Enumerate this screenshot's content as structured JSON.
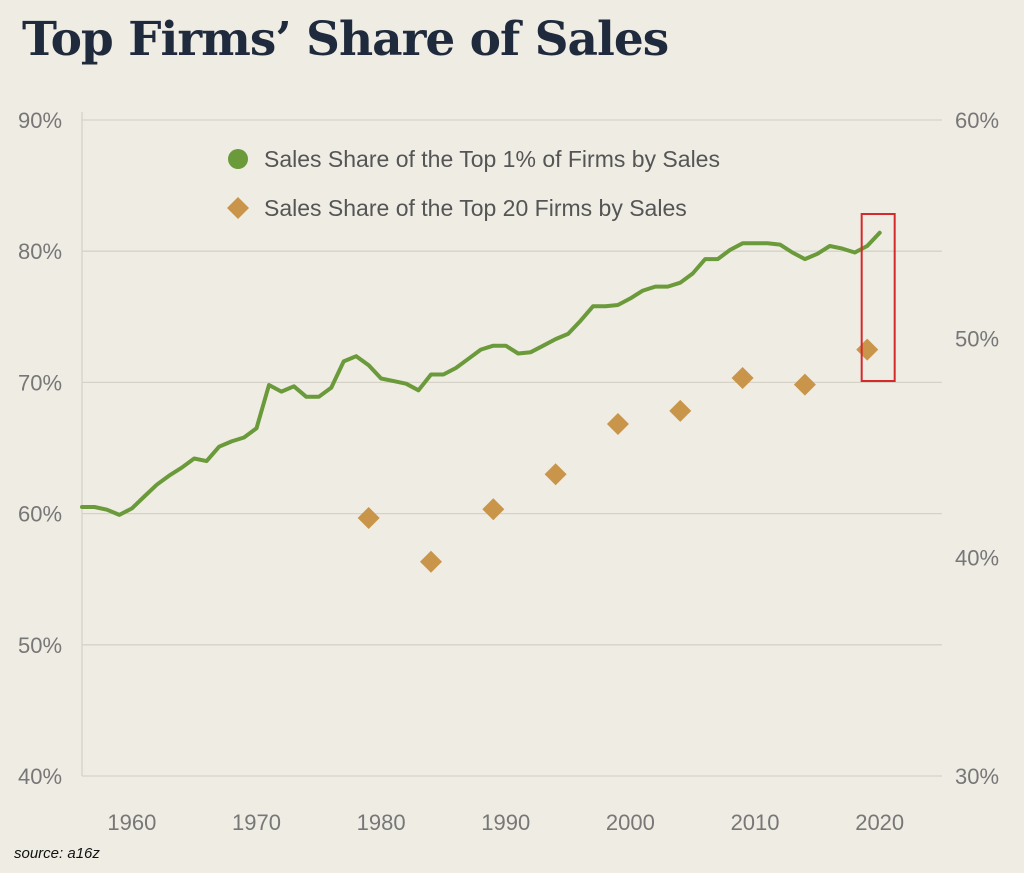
{
  "title": "Top Firms’ Share of Sales",
  "source": "source: a16z",
  "colors": {
    "background": "#efece4",
    "title": "#1f2a3c",
    "line": "#6a9a3a",
    "diamond": "#c8954a",
    "highlight": "#d42a2a",
    "grid": "#d6d2c8",
    "tick_text": "#777777"
  },
  "chart_data": {
    "type": "line",
    "title": "Top Firms’ Share of Sales",
    "grid": true,
    "legend_position": "top",
    "x_range": [
      1956,
      2025
    ],
    "x_ticks": [
      "1960",
      "1970",
      "1980",
      "1990",
      "2000",
      "2010",
      "2020"
    ],
    "y_left": {
      "range": [
        40,
        90
      ],
      "ticks": [
        "40%",
        "50%",
        "60%",
        "70%",
        "80%",
        "90%"
      ]
    },
    "y_right": {
      "range": [
        30,
        60
      ],
      "ticks": [
        "30%",
        "40%",
        "50%",
        "60%"
      ]
    },
    "series": [
      {
        "name": "Sales Share of the Top 1% of Firms  by Sales",
        "type": "line",
        "axis": "left",
        "x": [
          1956,
          1957,
          1958,
          1959,
          1960,
          1961,
          1962,
          1963,
          1964,
          1965,
          1966,
          1967,
          1968,
          1969,
          1970,
          1971,
          1972,
          1973,
          1974,
          1975,
          1976,
          1977,
          1978,
          1979,
          1980,
          1981,
          1982,
          1983,
          1984,
          1985,
          1986,
          1987,
          1988,
          1989,
          1990,
          1991,
          1992,
          1993,
          1994,
          1995,
          1996,
          1997,
          1998,
          1999,
          2000,
          2001,
          2002,
          2003,
          2004,
          2005,
          2006,
          2007,
          2008,
          2009,
          2010,
          2011,
          2012,
          2013,
          2014,
          2015,
          2016,
          2017,
          2018,
          2019,
          2020
        ],
        "values": [
          60.5,
          60.5,
          60.3,
          59.9,
          60.4,
          61.3,
          62.2,
          62.9,
          63.5,
          64.2,
          64.0,
          65.1,
          65.5,
          65.8,
          66.5,
          69.8,
          69.3,
          69.7,
          68.9,
          68.9,
          69.6,
          71.6,
          72.0,
          71.3,
          70.3,
          70.1,
          69.9,
          69.4,
          70.6,
          70.6,
          71.1,
          71.8,
          72.5,
          72.8,
          72.8,
          72.2,
          72.3,
          72.8,
          73.3,
          73.7,
          74.7,
          75.8,
          75.8,
          75.9,
          76.4,
          77.0,
          77.3,
          77.3,
          77.6,
          78.3,
          79.4,
          79.4,
          80.1,
          80.6,
          80.6,
          80.6,
          80.5,
          79.9,
          79.4,
          79.8,
          80.4,
          80.2,
          79.9,
          80.4,
          81.4
        ]
      },
      {
        "name": "Sales Share of the Top 20 Firms by Sales",
        "type": "scatter",
        "marker": "diamond",
        "axis": "right",
        "x": [
          1979,
          1984,
          1989,
          1994,
          1999,
          2004,
          2009,
          2014,
          2019
        ],
        "values": [
          41.8,
          39.8,
          42.2,
          43.8,
          46.1,
          46.7,
          48.2,
          47.9,
          49.5
        ]
      }
    ]
  }
}
